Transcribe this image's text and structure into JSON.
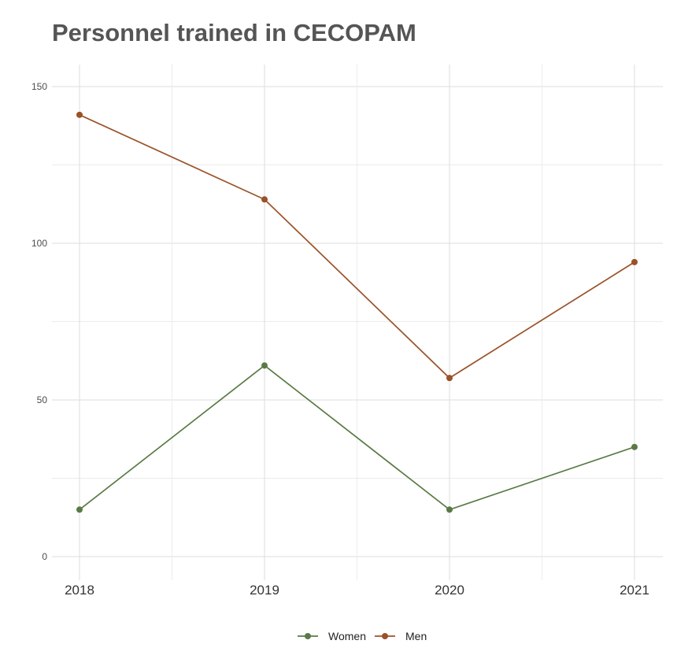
{
  "chart_data": {
    "type": "line",
    "title": "Personnel trained in CECOPAM",
    "xlabel": "",
    "ylabel": "",
    "x": [
      "2018",
      "2019",
      "2020",
      "2021"
    ],
    "yticks": [
      "0",
      "50",
      "100",
      "150"
    ],
    "ylim": [
      -7,
      157
    ],
    "grid": true,
    "legend_position": "bottom",
    "series": [
      {
        "name": "Women",
        "values": [
          15,
          61,
          15,
          35
        ],
        "color": "#5a7a45"
      },
      {
        "name": "Men",
        "values": [
          141,
          114,
          57,
          94
        ],
        "color": "#9a5228"
      }
    ]
  }
}
